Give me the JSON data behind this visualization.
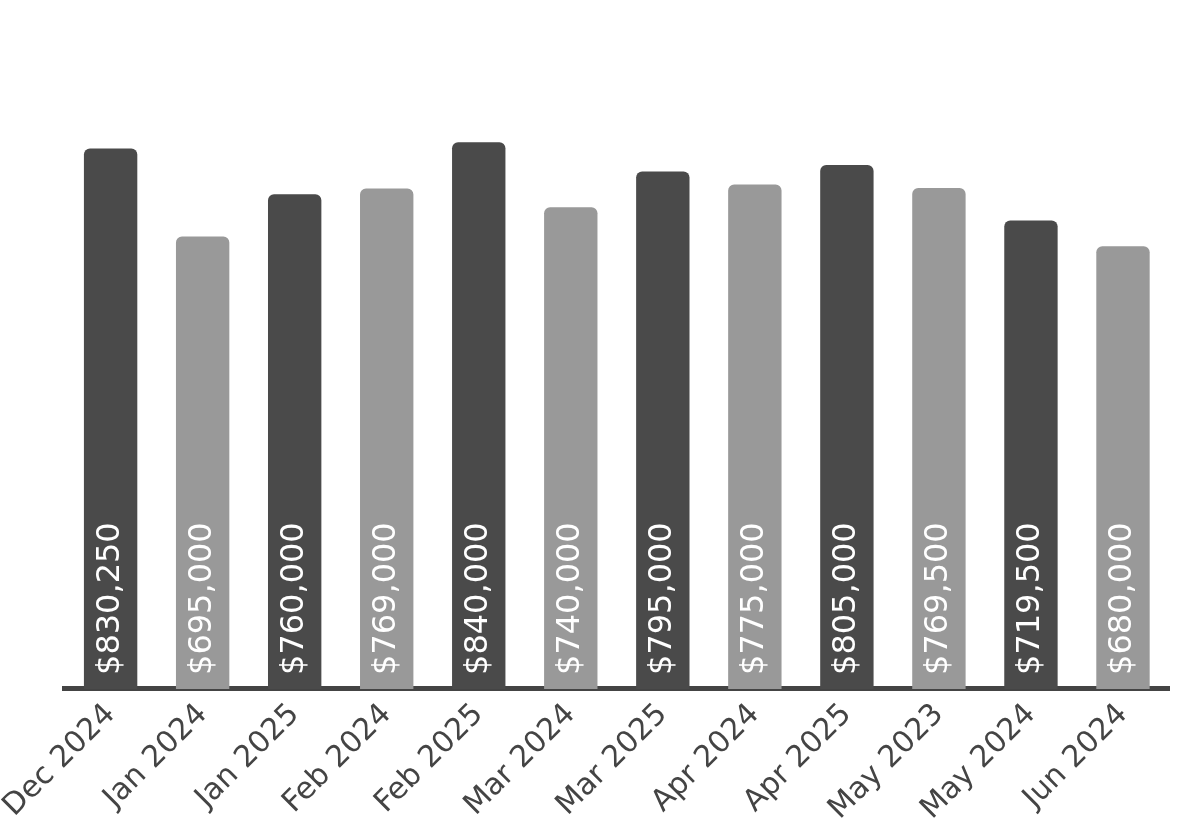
{
  "chart_data": {
    "type": "bar",
    "categories": [
      "Dec 2024",
      "Jan 2024",
      "Jan 2025",
      "Feb 2024",
      "Feb 2025",
      "Mar 2024",
      "Mar 2025",
      "Apr 2024",
      "Apr 2025",
      "May 2023",
      "May 2024",
      "Jun 2024"
    ],
    "values": [
      830250,
      695000,
      760000,
      769000,
      840000,
      740000,
      795000,
      775000,
      805000,
      769500,
      719500,
      680000
    ],
    "colors": [
      "#4a4a4a",
      "#999999",
      "#4a4a4a",
      "#999999",
      "#4a4a4a",
      "#999999",
      "#4a4a4a",
      "#999999",
      "#4a4a4a",
      "#999999",
      "#4a4a4a",
      "#999999"
    ],
    "value_labels": [
      "$830,250",
      "$695,000",
      "$760,000",
      "$769,000",
      "$840,000",
      "$740,000",
      "$795,000",
      "$775,000",
      "$805,000",
      "$769,500",
      "$719,500",
      "$680,000"
    ],
    "legend": false,
    "grid": false
  }
}
